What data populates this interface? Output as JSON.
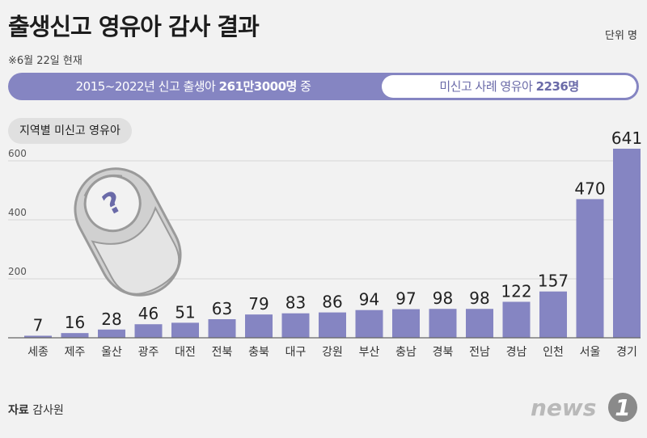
{
  "header": {
    "title": "출생신고 영유아 감사 결과",
    "unit": "단위 명",
    "note": "※6월 22일 현재"
  },
  "banner": {
    "left_prefix": "2015~2022년 신고 출생아 ",
    "left_value": "261만3000명",
    "left_suffix": " 중",
    "right_prefix": "미신고 사례 영유아 ",
    "right_value": "2236명"
  },
  "chip_label": "지역별 미신고 영유아",
  "footer": {
    "source_label": "자료",
    "source_value": "감사원"
  },
  "logo": {
    "text": "news",
    "number": "1"
  },
  "colors": {
    "bar": "#8585c2",
    "banner": "#8585c2",
    "axis": "#666666"
  },
  "chart_data": {
    "type": "bar",
    "categories": [
      "세종",
      "제주",
      "울산",
      "광주",
      "대전",
      "전북",
      "충북",
      "대구",
      "강원",
      "부산",
      "충남",
      "경북",
      "전남",
      "경남",
      "인천",
      "서울",
      "경기"
    ],
    "values": [
      7,
      16,
      28,
      46,
      51,
      63,
      79,
      83,
      86,
      94,
      97,
      98,
      98,
      122,
      157,
      470,
      641
    ],
    "yticks": [
      200,
      400,
      600
    ],
    "ylim": [
      0,
      641
    ],
    "grid": true,
    "title": "",
    "xlabel": "",
    "ylabel": ""
  }
}
